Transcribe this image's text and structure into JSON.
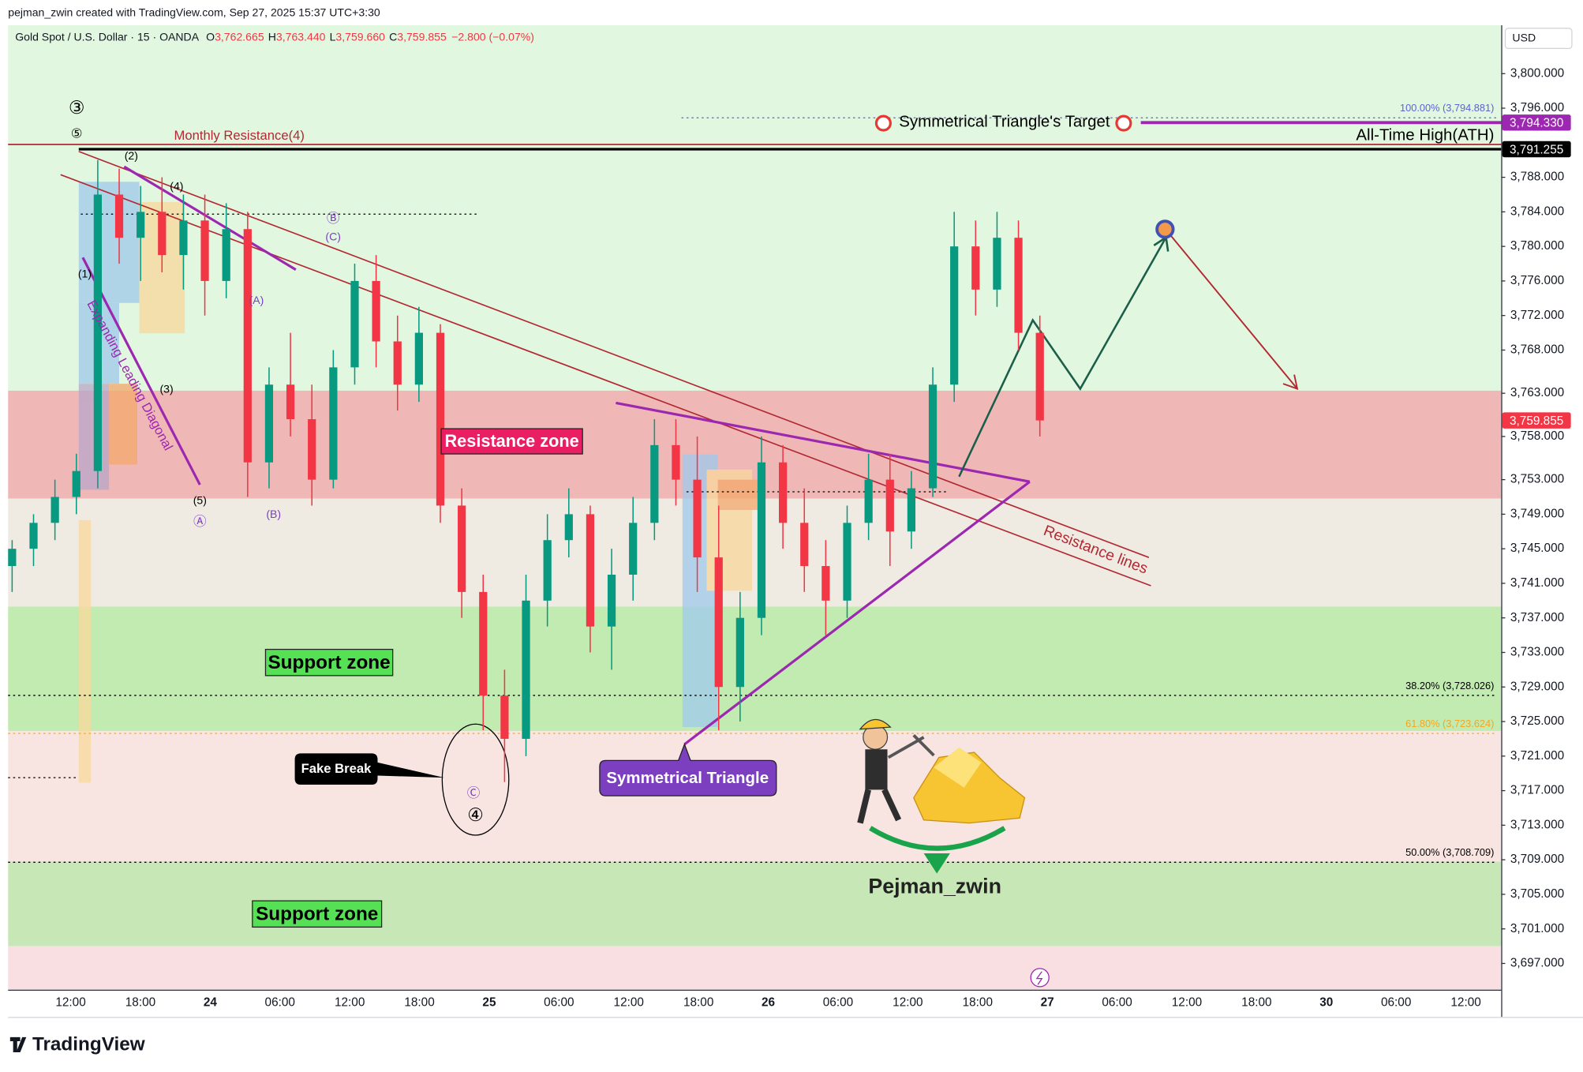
{
  "top_bar": "pejman_zwin created with TradingView.com, Sep 27, 2025 15:37 UTC+3:30",
  "legend": {
    "symbol": "Gold Spot / U.S. Dollar · 15 · OANDA",
    "ohlc": [
      {
        "key": "O",
        "value": "3,762.665"
      },
      {
        "key": "H",
        "value": "3,763.440"
      },
      {
        "key": "L",
        "value": "3,759.660"
      },
      {
        "key": "C",
        "value": "3,759.855"
      }
    ],
    "change": "−2.800 (−0.07%)"
  },
  "currency": "USD",
  "brand": "TradingView",
  "chart_data": {
    "type": "candlestick",
    "up_color": "#089981",
    "down_color": "#f23645",
    "open": [
      3743,
      3745,
      3748,
      3751,
      3754,
      3786,
      3781,
      3784,
      3779,
      3783,
      3776,
      3782,
      3755,
      3764,
      3760,
      3753,
      3766,
      3776,
      3769,
      3764,
      3770,
      3750,
      3740,
      3728,
      3723,
      3739,
      3746,
      3749,
      3736,
      3742,
      3748,
      3757,
      3753,
      3744,
      3729,
      3737,
      3755,
      3748,
      3743,
      3739,
      3748,
      3753,
      3747,
      3752,
      3764,
      3780,
      3775,
      3781,
      3770
    ],
    "high": [
      3746,
      3749,
      3753,
      3756,
      3790,
      3789,
      3787,
      3788,
      3786,
      3786,
      3785,
      3784,
      3766,
      3770,
      3764,
      3768,
      3778,
      3779,
      3772,
      3773,
      3771,
      3752,
      3742,
      3731,
      3742,
      3749,
      3752,
      3750,
      3745,
      3751,
      3760,
      3760,
      3758,
      3750,
      3740,
      3758,
      3757,
      3752,
      3746,
      3750,
      3756,
      3756,
      3754,
      3766,
      3784,
      3783,
      3784,
      3783,
      3772
    ],
    "low": [
      3740,
      3743,
      3746,
      3749,
      3752,
      3778,
      3776,
      3777,
      3775,
      3772,
      3774,
      3751,
      3752,
      3758,
      3750,
      3752,
      3764,
      3766,
      3761,
      3762,
      3748,
      3737,
      3724,
      3718,
      3721,
      3736,
      3744,
      3733,
      3731,
      3739,
      3746,
      3750,
      3740,
      3724,
      3725,
      3735,
      3745,
      3740,
      3735,
      3737,
      3746,
      3743,
      3745,
      3751,
      3762,
      3772,
      3773,
      3768,
      3758
    ],
    "close": [
      3745,
      3748,
      3751,
      3754,
      3786,
      3781,
      3784,
      3779,
      3783,
      3776,
      3782,
      3755,
      3764,
      3760,
      3753,
      3766,
      3776,
      3769,
      3764,
      3770,
      3750,
      3740,
      3728,
      3723,
      3739,
      3746,
      3749,
      3736,
      3742,
      3748,
      3757,
      3753,
      3744,
      3729,
      3737,
      3755,
      3748,
      3743,
      3739,
      3748,
      3753,
      3747,
      3752,
      3764,
      3780,
      3775,
      3781,
      3770,
      3759.855
    ],
    "ylim": [
      3693.96,
      3805.6
    ],
    "yticks": [
      {
        "value": 3800,
        "label": "3,800.000"
      },
      {
        "value": 3796,
        "label": "3,796.000"
      },
      {
        "value": 3788,
        "label": "3,788.000"
      },
      {
        "value": 3784,
        "label": "3,784.000"
      },
      {
        "value": 3780,
        "label": "3,780.000"
      },
      {
        "value": 3776,
        "label": "3,776.000"
      },
      {
        "value": 3772,
        "label": "3,772.000"
      },
      {
        "value": 3768,
        "label": "3,768.000"
      },
      {
        "value": 3763,
        "label": "3,763.000"
      },
      {
        "value": 3758,
        "label": "3,758.000"
      },
      {
        "value": 3753,
        "label": "3,753.000"
      },
      {
        "value": 3749,
        "label": "3,749.000"
      },
      {
        "value": 3745,
        "label": "3,745.000"
      },
      {
        "value": 3741,
        "label": "3,741.000"
      },
      {
        "value": 3737,
        "label": "3,737.000"
      },
      {
        "value": 3733,
        "label": "3,733.000"
      },
      {
        "value": 3729,
        "label": "3,729.000"
      },
      {
        "value": 3725,
        "label": "3,725.000"
      },
      {
        "value": 3721,
        "label": "3,721.000"
      },
      {
        "value": 3717,
        "label": "3,717.000"
      },
      {
        "value": 3713,
        "label": "3,713.000"
      },
      {
        "value": 3709,
        "label": "3,709.000"
      },
      {
        "value": 3705,
        "label": "3,705.000"
      },
      {
        "value": 3701,
        "label": "3,701.000"
      },
      {
        "value": 3697,
        "label": "3,697.000"
      }
    ],
    "time_labels": [
      "12:00",
      "18:00",
      "24",
      "06:00",
      "12:00",
      "18:00",
      "25",
      "06:00",
      "12:00",
      "18:00",
      "26",
      "06:00",
      "12:00",
      "18:00",
      "27",
      "06:00",
      "12:00",
      "18:00",
      "30",
      "06:00",
      "12:00"
    ],
    "zones": [
      {
        "label": "Resistance zone",
        "range": [
          3750.8,
          3763.3
        ],
        "color": "#efb8b6"
      },
      {
        "label": "Support zone",
        "range": [
          3723.9,
          3738.3
        ],
        "color": "#c1ebb0"
      },
      {
        "label": "Support zone",
        "range": [
          3699.0,
          3708.8
        ],
        "color": "#c8e7b6"
      }
    ],
    "fib_levels": [
      {
        "label": "100.00% (3,794.881)",
        "value": 3794.881,
        "color": "#5b63d3"
      },
      {
        "label": "38.20% (3,728.026)",
        "value": 3728.026,
        "color": "#000000"
      },
      {
        "label": "61.80% (3,723.624)",
        "value": 3723.624,
        "color": "#f5a623"
      },
      {
        "label": "50.00% (3,708.709)",
        "value": 3708.709,
        "color": "#000000"
      }
    ],
    "price_lines": [
      {
        "name": "Monthly Resistance(4)",
        "value": 3791.8,
        "color": "#b22833"
      },
      {
        "name": "All-Time High(ATH)",
        "value": 3791.255,
        "color": "#000000",
        "badge": "3,791.255"
      },
      {
        "name": "Symmetrical Triangle's Target",
        "value": 3794.33,
        "color": "#9c27b0",
        "badge": "3,794.330"
      }
    ],
    "last_price": {
      "value": 3759.855,
      "label": "3,759.855",
      "color": "#f23645"
    },
    "wave_labels": [
      "③",
      "⑤",
      "(2)",
      "(4)",
      "(1)",
      "(3)",
      "(5)",
      "Ⓐ",
      "(A)",
      "Ⓑ",
      "(C)",
      "(B)",
      "Ⓒ",
      "④"
    ],
    "notes": {
      "diagonal": "Expanding Leading Diagonal",
      "fake_break": "Fake Break",
      "triangle": "Symmetrical Triangle",
      "resistance_lines": "Resistance lines",
      "author": "Pejman_zwin"
    }
  }
}
